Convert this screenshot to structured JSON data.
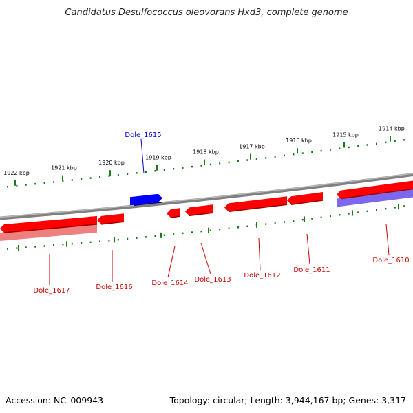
{
  "title": "Candidatus Desulfococcus oleovorans Hxd3, complete genome",
  "footer": {
    "accession": "Accession: NC_009943",
    "topology": "Topology: circular; Length: 3,944,167 bp; Genes: 3,317"
  },
  "colors": {
    "forward_gene": "#ff0000",
    "reverse_gene": "#ff0000",
    "rna_like_gene": "#0000ff",
    "reverse_shadow_red": "#f08080",
    "reverse_shadow_blue": "#7b68ee",
    "ruler_ticks": "#1a7a1a",
    "backbone": "#808080",
    "label_red": "#cc0000",
    "label_blue": "#0000cc"
  },
  "ruler": {
    "ticks": [
      {
        "label": "1922 kbp"
      },
      {
        "label": "1921 kbp"
      },
      {
        "label": "1920 kbp"
      },
      {
        "label": "1919 kbp"
      },
      {
        "label": "1918 kbp"
      },
      {
        "label": "1917 kbp"
      },
      {
        "label": "1916 kbp"
      },
      {
        "label": "1915 kbp"
      },
      {
        "label": "1914 kbp"
      }
    ]
  },
  "genes": [
    {
      "id": "Dole_1617",
      "strand": "reverse",
      "color": "red"
    },
    {
      "id": "Dole_1616",
      "strand": "reverse",
      "color": "red"
    },
    {
      "id": "Dole_1615",
      "strand": "forward",
      "color": "blue"
    },
    {
      "id": "Dole_1614",
      "strand": "reverse",
      "color": "red"
    },
    {
      "id": "Dole_1613",
      "strand": "reverse",
      "color": "red"
    },
    {
      "id": "Dole_1612",
      "strand": "reverse",
      "color": "red"
    },
    {
      "id": "Dole_1611",
      "strand": "reverse",
      "color": "red"
    },
    {
      "id": "Dole_1610",
      "strand": "reverse",
      "color": "red"
    }
  ]
}
